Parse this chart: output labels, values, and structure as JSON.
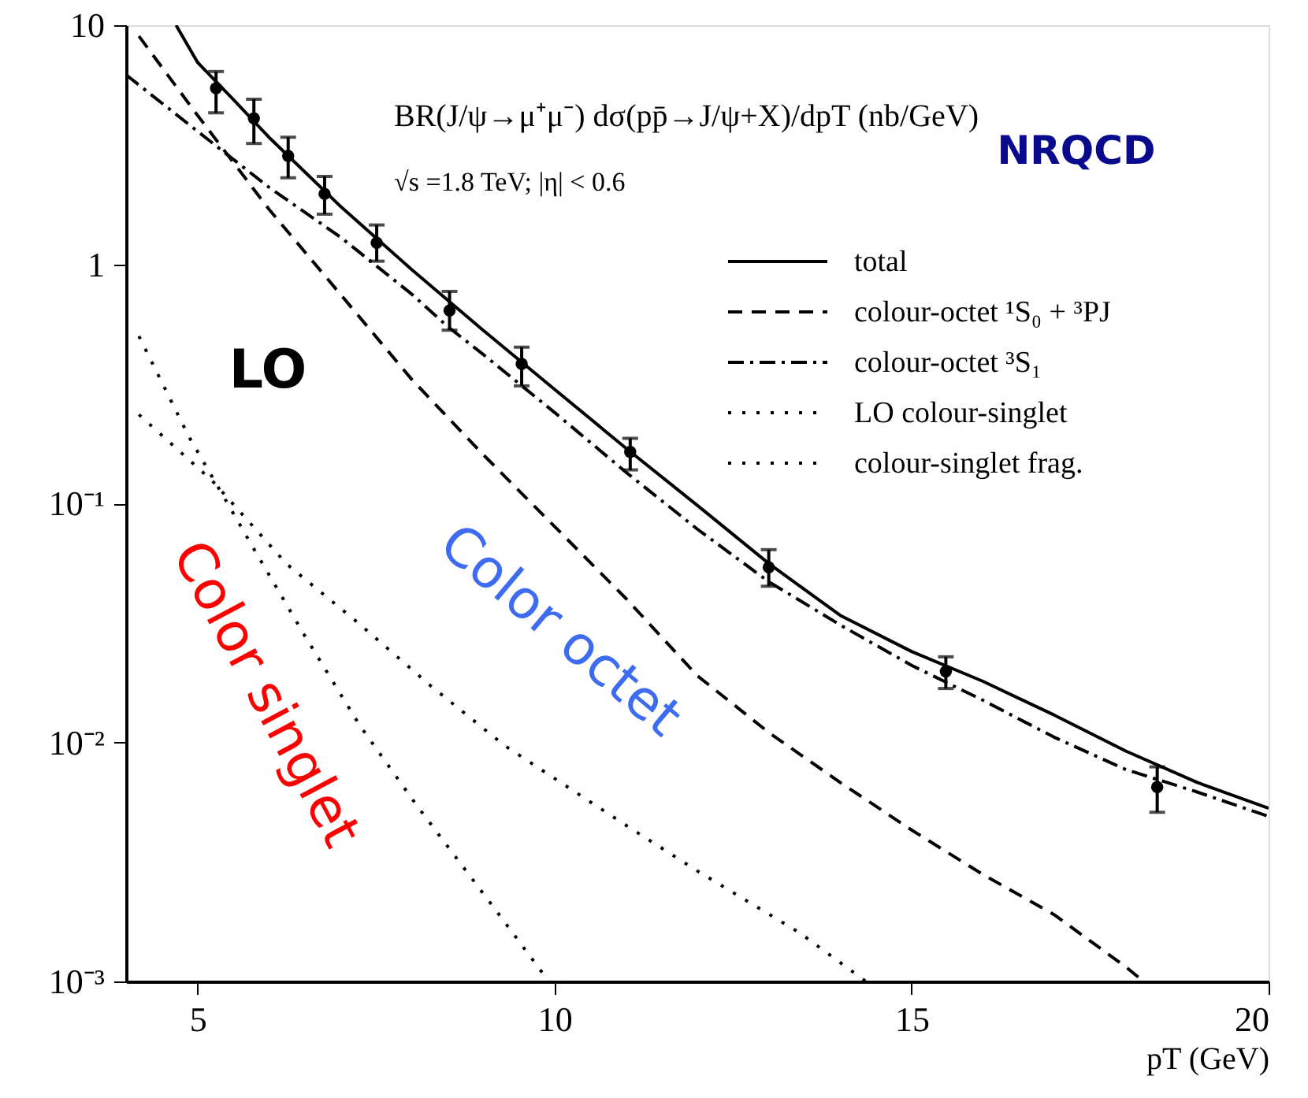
{
  "chart_data": {
    "type": "line",
    "xlabel": "pT (GeV)",
    "annotations": [
      "BR(J/ψ→μ⁺μ⁻) dσ(pp̄→J/ψ+X)/dpT (nb/GeV)",
      "√s =1.8 TeV; |η| < 0.6",
      "NRQCD",
      "LO",
      "Color octet",
      "Color singlet"
    ],
    "xlim": [
      4,
      20
    ],
    "xticks": [
      5,
      10,
      15,
      20
    ],
    "ylim": [
      0.001,
      10
    ],
    "yticks": [
      {
        "value": 0.001,
        "label": "10⁻³"
      },
      {
        "value": 0.01,
        "label": "10⁻²"
      },
      {
        "value": 0.1,
        "label": "10⁻¹"
      },
      1,
      10
    ],
    "log": "y",
    "grid": false,
    "legend": "top right",
    "series": [
      {
        "name": "total",
        "color": "#000000",
        "line_style": "solid",
        "x": [
          4.7,
          5,
          5.5,
          6,
          7,
          8,
          9,
          10,
          11,
          12,
          13,
          14,
          15,
          16,
          17,
          18,
          19,
          20
        ],
        "values": [
          10,
          7.0,
          4.9,
          3.4,
          1.75,
          0.95,
          0.53,
          0.3,
          0.17,
          0.098,
          0.056,
          0.034,
          0.024,
          0.018,
          0.013,
          0.0092,
          0.0068,
          0.0053
        ]
      },
      {
        "name": "colour-octet ¹S₀ + ³PJ",
        "color": "#000000",
        "line_style": "dashed",
        "x": [
          4.18,
          5,
          6,
          7,
          8,
          9,
          10,
          11,
          12,
          13,
          14,
          15,
          16,
          17,
          18,
          18.25
        ],
        "values": [
          9.0,
          4.2,
          1.7,
          0.75,
          0.33,
          0.16,
          0.08,
          0.04,
          0.019,
          0.011,
          0.0068,
          0.0043,
          0.0028,
          0.0019,
          0.00115,
          0.001
        ]
      },
      {
        "name": "colour-octet ³S₁",
        "color": "#000000",
        "line_style": "dashdot",
        "x": [
          4,
          5,
          6,
          7,
          8,
          8.5,
          9,
          10,
          11,
          12,
          13,
          14,
          15,
          16,
          17,
          18,
          19,
          20
        ],
        "values": [
          6.2,
          3.6,
          2.1,
          1.3,
          0.75,
          0.55,
          0.42,
          0.24,
          0.135,
          0.078,
          0.047,
          0.031,
          0.021,
          0.015,
          0.0105,
          0.0077,
          0.0062,
          0.0049
        ]
      },
      {
        "name": "LO colour-singlet",
        "color": "#000000",
        "line_style": "dotted",
        "x": [
          4.18,
          4.88,
          5.77,
          6.5,
          7.27,
          8.08,
          9.17,
          9.92
        ],
        "values": [
          0.5,
          0.19,
          0.066,
          0.028,
          0.0118,
          0.0054,
          0.002,
          0.001
        ]
      },
      {
        "name": "colour-singlet frag.",
        "color": "#000000",
        "line_style": "dotted",
        "x": [
          4.18,
          5.21,
          6.25,
          7.24,
          8.26,
          9.3,
          11,
          12,
          13.43,
          14.36
        ],
        "values": [
          0.235,
          0.124,
          0.0557,
          0.0318,
          0.0173,
          0.0097,
          0.0045,
          0.0029,
          0.0016,
          0.001
        ]
      },
      {
        "type": "scatter",
        "color": "#000000",
        "marker": "circle",
        "x": [
          5.26,
          5.79,
          6.27,
          6.78,
          7.51,
          8.53,
          9.54,
          11.06,
          13.0,
          15.48,
          18.44
        ],
        "values": [
          5.45,
          4.08,
          2.84,
          1.97,
          1.23,
          0.64,
          0.383,
          0.164,
          0.054,
          0.0198,
          0.0065
        ],
        "errors": [
          [
            4.3,
            6.4
          ],
          [
            3.2,
            4.9
          ],
          [
            2.3,
            3.4
          ],
          [
            1.62,
            2.33
          ],
          [
            1.03,
            1.46
          ],
          [
            0.53,
            0.77
          ],
          [
            0.31,
            0.45
          ],
          [
            0.138,
            0.187
          ],
          [
            0.045,
            0.064
          ],
          [
            0.0168,
            0.0228
          ],
          [
            0.0051,
            0.0079
          ]
        ]
      }
    ]
  }
}
